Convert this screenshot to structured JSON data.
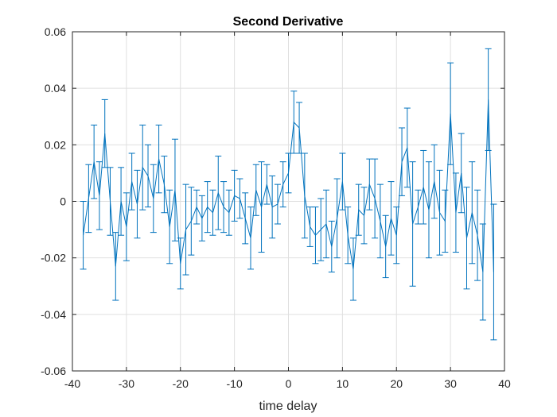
{
  "chart_data": {
    "type": "line",
    "title": "Second Derivative",
    "xlabel": "time delay",
    "ylabel": "",
    "xlim": [
      -40,
      40
    ],
    "ylim": [
      -0.06,
      0.06
    ],
    "xticks": [
      "-40",
      "-30",
      "-20",
      "-10",
      "0",
      "10",
      "20",
      "30",
      "40"
    ],
    "yticks": [
      "-0.06",
      "-0.04",
      "-0.02",
      "0",
      "0.02",
      "0.04",
      "0.06"
    ],
    "grid": true,
    "series_color": "#0072BD",
    "series": [
      {
        "x": [
          -38,
          -37,
          -36,
          -35,
          -34,
          -33,
          -32,
          -31,
          -30,
          -29,
          -28,
          -27,
          -26,
          -25,
          -24,
          -23,
          -22,
          -21,
          -20,
          -19,
          -18,
          -17,
          -16,
          -15,
          -14,
          -13,
          -12,
          -11,
          -10,
          -9,
          -8,
          -7,
          -6,
          -5,
          -4,
          -3,
          -2,
          -1,
          0,
          1,
          2,
          3,
          4,
          5,
          6,
          7,
          8,
          9,
          10,
          11,
          12,
          13,
          14,
          15,
          16,
          17,
          18,
          19,
          20,
          21,
          22,
          23,
          24,
          25,
          26,
          27,
          28,
          29,
          30,
          31,
          32,
          33,
          34,
          35,
          36,
          37,
          38
        ],
        "y": [
          -0.012,
          0.001,
          0.014,
          0.002,
          0.024,
          0,
          -0.023,
          0,
          -0.009,
          0.007,
          -0.001,
          0.012,
          0.009,
          0.001,
          0.015,
          0.006,
          -0.009,
          0.004,
          -0.022,
          -0.01,
          -0.007,
          -0.002,
          -0.006,
          -0.002,
          -0.004,
          0.003,
          -0.002,
          -0.004,
          0.002,
          0.001,
          -0.006,
          -0.013,
          0.004,
          -0.002,
          0.006,
          -0.002,
          -0.001,
          0.006,
          0.01,
          0.028,
          0.026,
          0.002,
          -0.009,
          -0.012,
          -0.01,
          -0.008,
          -0.016,
          -0.006,
          0.007,
          -0.012,
          -0.024,
          -0.003,
          -0.005,
          0.006,
          0.001,
          -0.007,
          -0.016,
          -0.006,
          -0.012,
          0.014,
          0.019,
          -0.008,
          -0.002,
          0.005,
          -0.003,
          0.007,
          -0.004,
          -0.007,
          0.031,
          -0.004,
          0.01,
          -0.013,
          -0.004,
          -0.012,
          -0.025,
          0.036,
          -0.025
        ],
        "err": [
          0.012,
          0.012,
          0.013,
          0.012,
          0.012,
          0.012,
          0.012,
          0.012,
          0.012,
          0.01,
          0.012,
          0.015,
          0.011,
          0.012,
          0.012,
          0.01,
          0.013,
          0.018,
          0.009,
          0.016,
          0.012,
          0.006,
          0.008,
          0.009,
          0.008,
          0.013,
          0.009,
          0.008,
          0.009,
          0.007,
          0.009,
          0.011,
          0.009,
          0.016,
          0.007,
          0.011,
          0.007,
          0.008,
          0.007,
          0.011,
          0.009,
          0.015,
          0.007,
          0.01,
          0.011,
          0.012,
          0.009,
          0.014,
          0.01,
          0.01,
          0.011,
          0.009,
          0.01,
          0.009,
          0.014,
          0.013,
          0.011,
          0.013,
          0.01,
          0.012,
          0.014,
          0.022,
          0.006,
          0.013,
          0.017,
          0.013,
          0.015,
          0.011,
          0.018,
          0.014,
          0.014,
          0.018,
          0.018,
          0.016,
          0.017,
          0.018,
          0.024
        ]
      }
    ]
  }
}
